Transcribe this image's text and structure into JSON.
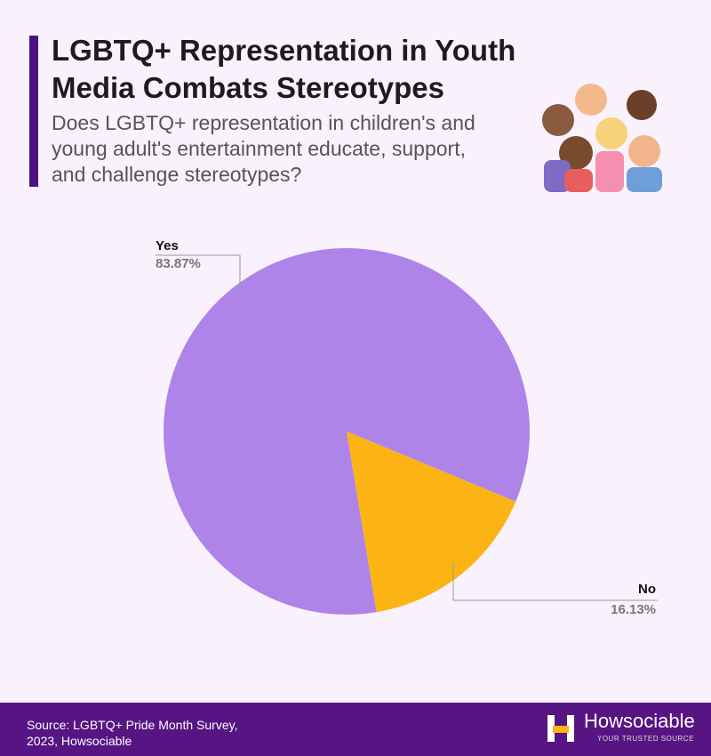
{
  "chart_data": {
    "type": "pie",
    "title": "LGBTQ+ Representation in Youth Media Combats Stereotypes",
    "subtitle": "Does LGBTQ+ representation in children's and young adult's entertainment educate, support, and challenge stereotypes?",
    "categories": [
      "Yes",
      "No"
    ],
    "values": [
      83.87,
      16.13
    ],
    "value_labels": [
      "83.87%",
      "16.13%"
    ],
    "colors": [
      "#ae84e9",
      "#fbb414"
    ],
    "source": "Source: LGBTQ+ Pride Month Survey, 2023, Howsociable",
    "brand": "Howsociable",
    "tagline": "YOUR TRUSTED SOURCE"
  }
}
